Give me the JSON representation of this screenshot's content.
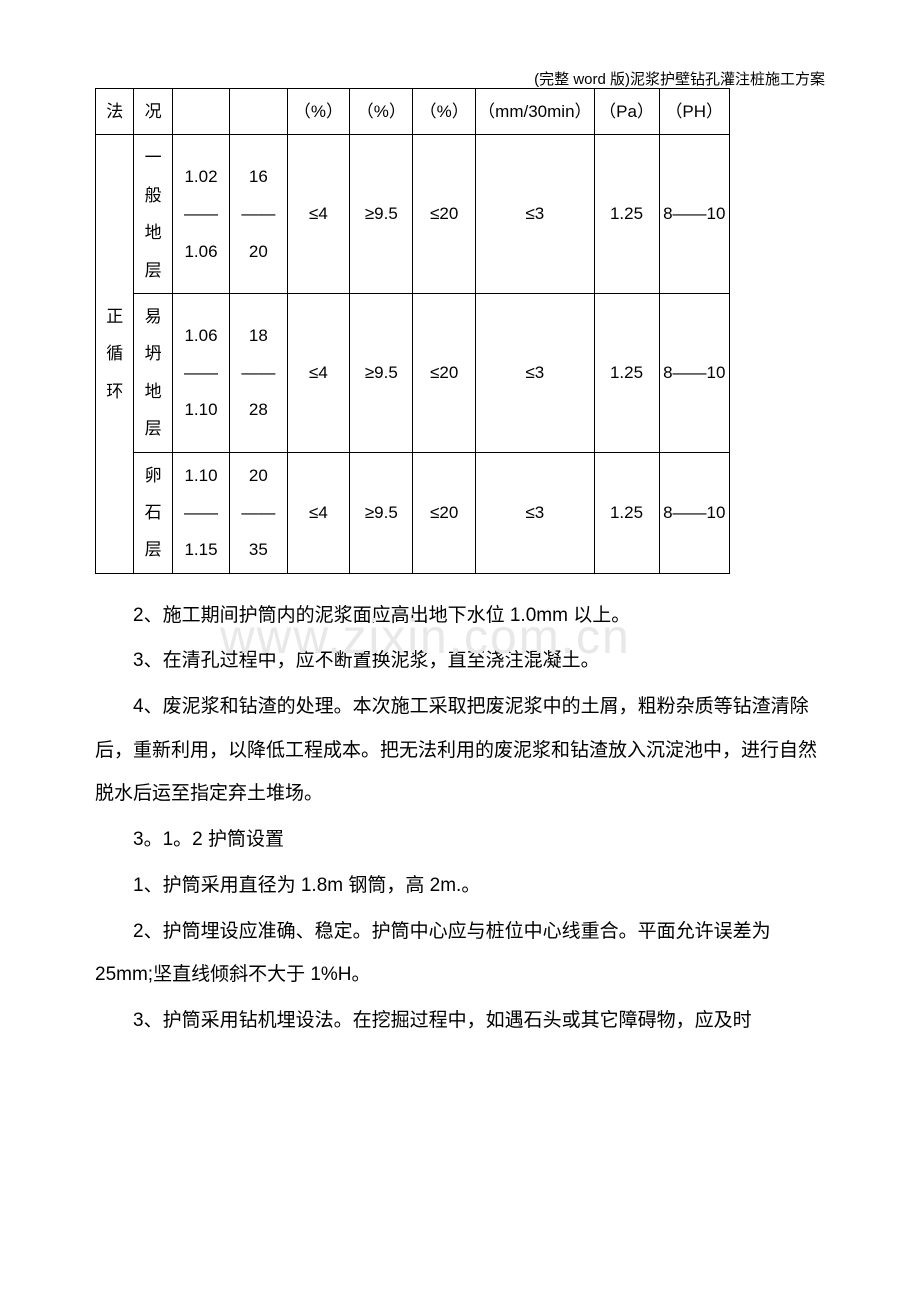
{
  "header_note": "(完整 word 版)泥浆护壁钻孔灌注桩施工方案",
  "watermark": "www.zixin.com.cn",
  "table": {
    "header_row": {
      "method": "法",
      "condition": "况",
      "c3": "",
      "c4": "",
      "c5": "（%）",
      "c6": "（%）",
      "c7": "（%）",
      "c8": "（mm/30min）",
      "c9": "（Pa）",
      "c10": "（PH）"
    },
    "method_label": "正循环",
    "rows": [
      {
        "condition": "一般地层",
        "density": "1.02——1.06",
        "viscosity": "16——20",
        "v1": "≤4",
        "v2": "≥9.5",
        "v3": "≤20",
        "v4": "≤3",
        "pa": "1.25",
        "ph": "8——10"
      },
      {
        "condition": "易坍地层",
        "density": "1.06——1.10",
        "viscosity": "18——28",
        "v1": "≤4",
        "v2": "≥9.5",
        "v3": "≤20",
        "v4": "≤3",
        "pa": "1.25",
        "ph": "8——10"
      },
      {
        "condition": "卵石层",
        "density": "1.10——1.15",
        "viscosity": "20——35",
        "v1": "≤4",
        "v2": "≥9.5",
        "v3": "≤20",
        "v4": "≤3",
        "pa": "1.25",
        "ph": "8——10"
      }
    ]
  },
  "paragraphs": {
    "p1": "2、施工期间护筒内的泥浆面应高出地下水位 1.0mm 以上。",
    "p2": "3、在清孔过程中，应不断置换泥浆，直至浇注混凝土。",
    "p3": "4、废泥浆和钻渣的处理。本次施工采取把废泥浆中的土屑，粗粉杂质等钻渣清除后，重新利用，以降低工程成本。把无法利用的废泥浆和钻渣放入沉淀池中，进行自然脱水后运至指定弃土堆场。",
    "p4": "3。1。2  护筒设置",
    "p5": "1、护筒采用直径为 1.8m 钢筒，高 2m.。",
    "p6": "2、护筒埋设应准确、稳定。护筒中心应与桩位中心线重合。平面允许误差为 25mm;坚直线倾斜不大于 1%H。",
    "p7": "3、护筒采用钻机埋设法。在挖掘过程中，如遇石头或其它障碍物，应及时"
  }
}
